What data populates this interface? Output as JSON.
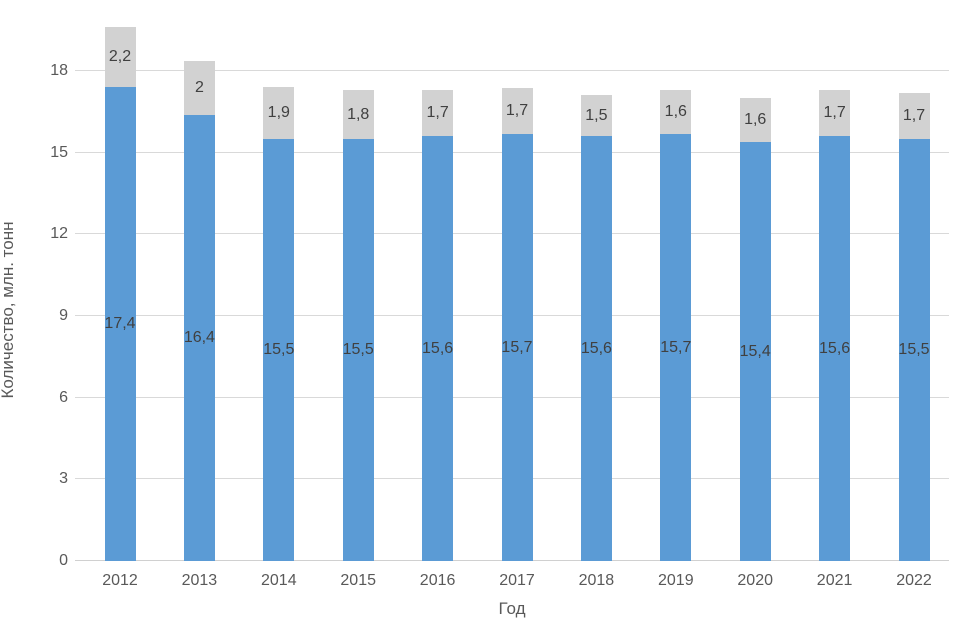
{
  "chart_data": {
    "type": "bar",
    "stacked": true,
    "title": "",
    "xlabel": "Год",
    "ylabel": "Количество, млн. тонн",
    "categories": [
      "2012",
      "2013",
      "2014",
      "2015",
      "2016",
      "2017",
      "2018",
      "2019",
      "2020",
      "2021",
      "2022"
    ],
    "series": [
      {
        "name": "blue-series",
        "color": "#5b9bd5",
        "values": [
          17.4,
          16.4,
          15.5,
          15.5,
          15.6,
          15.7,
          15.6,
          15.7,
          15.4,
          15.6,
          15.5
        ],
        "labels": [
          "17,4",
          "16,4",
          "15,5",
          "15,5",
          "15,6",
          "15,7",
          "15,6",
          "15,7",
          "15,4",
          "15,6",
          "15,5"
        ]
      },
      {
        "name": "gray-series",
        "color": "#d2d2d2",
        "values": [
          2.2,
          2.0,
          1.9,
          1.8,
          1.7,
          1.7,
          1.5,
          1.6,
          1.6,
          1.7,
          1.7
        ],
        "labels": [
          "2,2",
          "2",
          "1,9",
          "1,8",
          "1,7",
          "1,7",
          "1,5",
          "1,6",
          "1,6",
          "1,7",
          "1,7"
        ]
      }
    ],
    "yticks": [
      0,
      3,
      6,
      9,
      12,
      15,
      18
    ],
    "ylim": [
      0,
      19.8
    ],
    "grid": true,
    "legend": "none",
    "colors": {
      "gridline": "#d9d9d9",
      "axis_line": "#d0d0d0",
      "tick_label": "#595959",
      "data_label": "#404040",
      "background": "#ffffff"
    }
  }
}
